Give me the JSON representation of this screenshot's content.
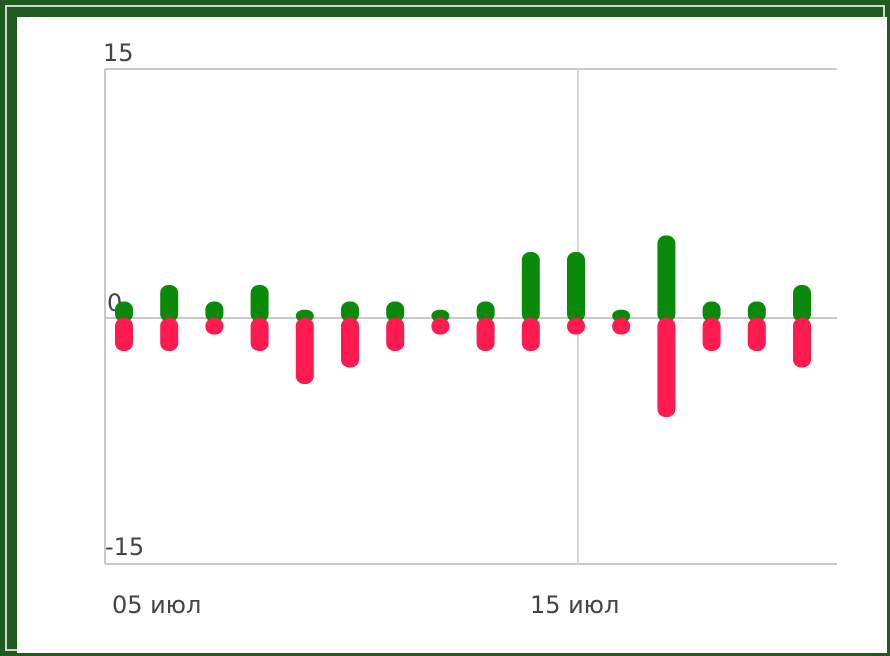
{
  "chart_data": {
    "type": "bar",
    "x_ticks": [
      "05 июл",
      "15 июл"
    ],
    "y_ticks": [
      "15",
      "0",
      "-15"
    ],
    "ylim": [
      -15,
      15
    ],
    "grid": true,
    "colors": {
      "positive": "#0a8a0a",
      "negative": "#ff1a4f"
    },
    "bars": [
      {
        "date": "2024-07-05",
        "up": 1,
        "down": -2
      },
      {
        "date": "2024-07-06",
        "up": 2,
        "down": -2
      },
      {
        "date": "2024-07-07",
        "up": 1,
        "down": -1
      },
      {
        "date": "2024-07-08",
        "up": 2,
        "down": -2
      },
      {
        "date": "2024-07-09",
        "up": 0.5,
        "down": -4
      },
      {
        "date": "2024-07-10",
        "up": 1,
        "down": -3
      },
      {
        "date": "2024-07-11",
        "up": 1,
        "down": -2
      },
      {
        "date": "2024-07-12",
        "up": 0.5,
        "down": -1
      },
      {
        "date": "2024-07-13",
        "up": 1,
        "down": -2
      },
      {
        "date": "2024-07-14",
        "up": 4,
        "down": -2
      },
      {
        "date": "2024-07-15",
        "up": 4,
        "down": -1
      },
      {
        "date": "2024-07-16",
        "up": 0.5,
        "down": -1
      },
      {
        "date": "2024-07-17",
        "up": 5,
        "down": -6
      },
      {
        "date": "2024-07-18",
        "up": 1,
        "down": -2
      },
      {
        "date": "2024-07-19",
        "up": 1,
        "down": -2
      },
      {
        "date": "2024-07-20",
        "up": 2,
        "down": -3
      }
    ]
  }
}
